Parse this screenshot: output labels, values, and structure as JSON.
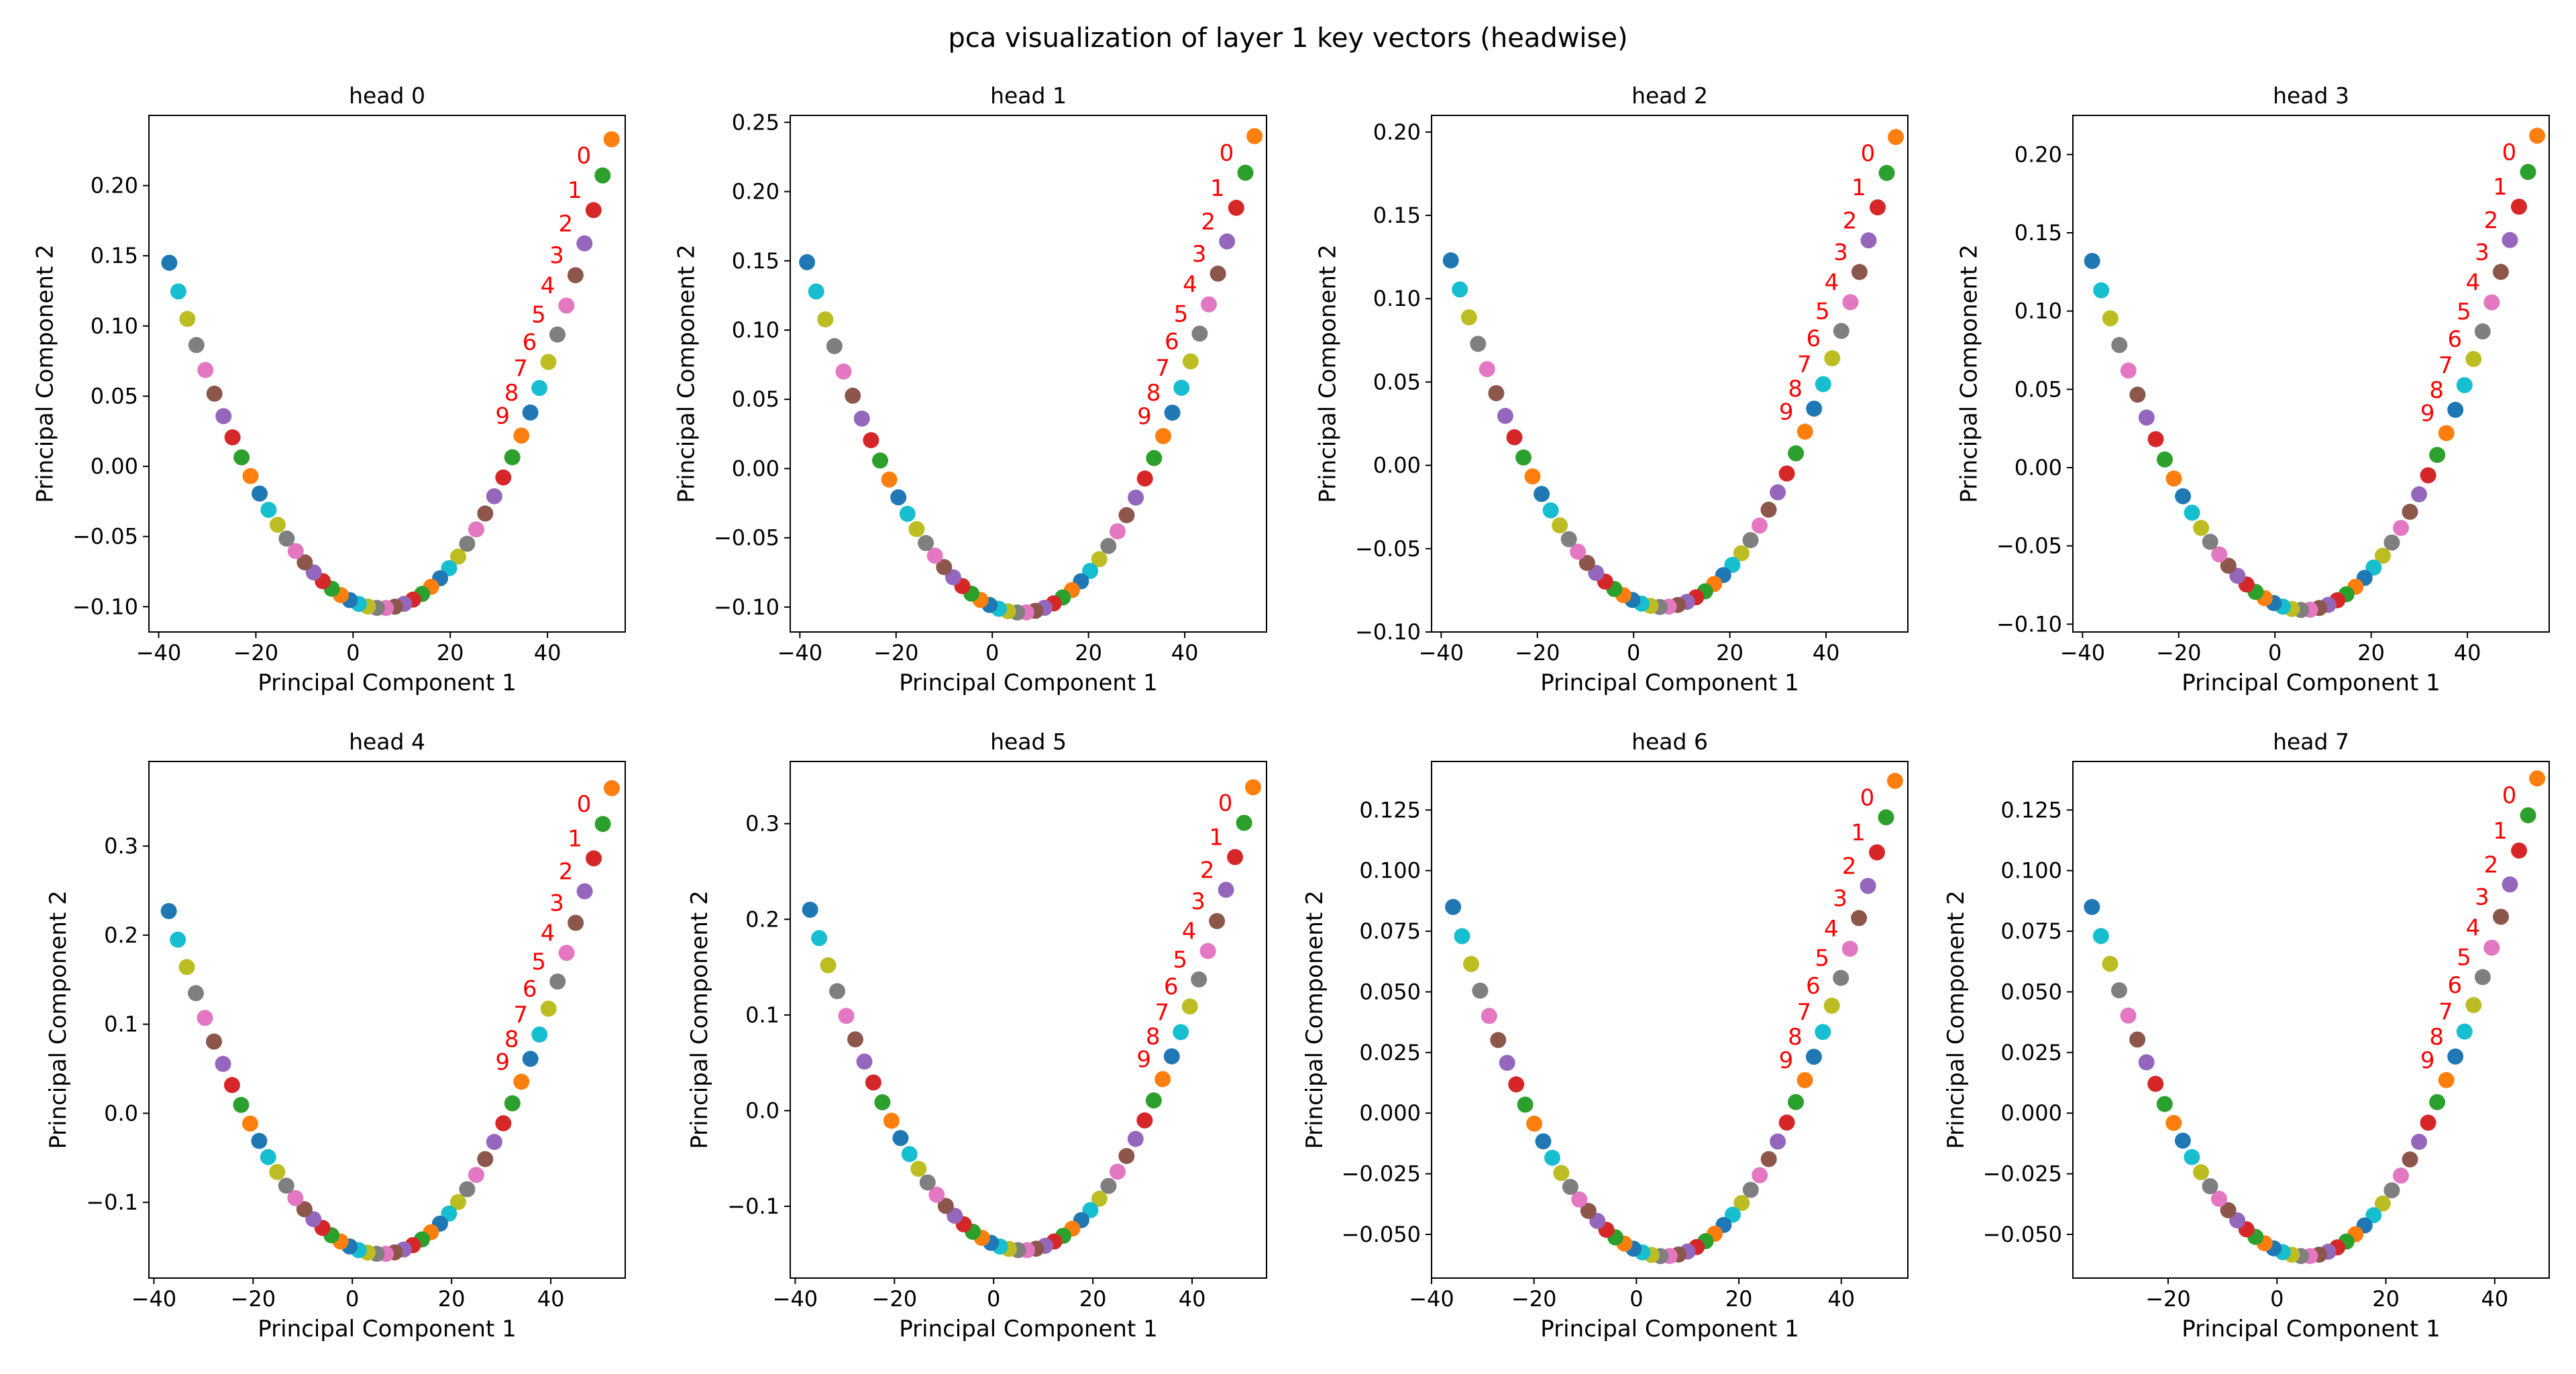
{
  "figure": {
    "title": "pca visualization of layer 1 key vectors (headwise)"
  },
  "palette": [
    "#1f77b4",
    "#ff7f0e",
    "#2ca02c",
    "#d62728",
    "#9467bd",
    "#8c564b",
    "#e377c2",
    "#7f7f7f",
    "#bcbd22",
    "#17becf"
  ],
  "annotation_color": "#ff0000",
  "chart_data": [
    {
      "type": "scatter",
      "title": "head 0",
      "xlabel": "Principal Component 1",
      "ylabel": "Principal Component 2",
      "xlim": [
        -42,
        56
      ],
      "ylim": [
        -0.118,
        0.25
      ],
      "xticks": [
        -40,
        -20,
        0,
        20,
        40
      ],
      "yticks": [
        -0.1,
        -0.05,
        0.0,
        0.05,
        0.1,
        0.15,
        0.2
      ],
      "ytick_labels": [
        "−0.10",
        "−0.05",
        "0.00",
        "0.05",
        "0.10",
        "0.15",
        "0.20"
      ],
      "first_color_index": 1,
      "curve": {
        "x_start": 53.2,
        "x_end": -37.8,
        "y_first": 0.233,
        "y_last": 0.145,
        "y_min": -0.101,
        "x_min": 6.0,
        "count": 50
      },
      "annotations": [
        "0",
        "1",
        "2",
        "3",
        "4",
        "5",
        "6",
        "7",
        "8",
        "9"
      ]
    },
    {
      "type": "scatter",
      "title": "head 1",
      "xlabel": "Principal Component 1",
      "ylabel": "Principal Component 2",
      "xlim": [
        -42,
        57
      ],
      "ylim": [
        -0.118,
        0.255
      ],
      "xticks": [
        -40,
        -20,
        0,
        20,
        40
      ],
      "yticks": [
        -0.1,
        -0.05,
        0.0,
        0.05,
        0.1,
        0.15,
        0.2,
        0.25
      ],
      "ytick_labels": [
        "−0.10",
        "−0.05",
        "0.00",
        "0.05",
        "0.10",
        "0.15",
        "0.20",
        "0.25"
      ],
      "first_color_index": 1,
      "curve": {
        "x_start": 54.5,
        "x_end": -38.5,
        "y_first": 0.24,
        "y_last": 0.149,
        "y_min": -0.104,
        "x_min": 6.0,
        "count": 50
      },
      "annotations": [
        "0",
        "1",
        "2",
        "3",
        "4",
        "5",
        "6",
        "7",
        "8",
        "9"
      ]
    },
    {
      "type": "scatter",
      "title": "head 2",
      "xlabel": "Principal Component 1",
      "ylabel": "Principal Component 2",
      "xlim": [
        -42,
        57
      ],
      "ylim": [
        -0.1,
        0.21
      ],
      "xticks": [
        -40,
        -20,
        0,
        20,
        40
      ],
      "yticks": [
        -0.1,
        -0.05,
        0.0,
        0.05,
        0.1,
        0.15,
        0.2
      ],
      "ytick_labels": [
        "−0.10",
        "−0.05",
        "0.00",
        "0.05",
        "0.10",
        "0.15",
        "0.20"
      ],
      "first_color_index": 1,
      "curve": {
        "x_start": 54.5,
        "x_end": -38.0,
        "y_first": 0.197,
        "y_last": 0.123,
        "y_min": -0.085,
        "x_min": 6.0,
        "count": 50
      },
      "annotations": [
        "0",
        "1",
        "2",
        "3",
        "4",
        "5",
        "6",
        "7",
        "8",
        "9"
      ]
    },
    {
      "type": "scatter",
      "title": "head 3",
      "xlabel": "Principal Component 1",
      "ylabel": "Principal Component 2",
      "xlim": [
        -42,
        57
      ],
      "ylim": [
        -0.105,
        0.225
      ],
      "xticks": [
        -40,
        -20,
        0,
        20,
        40
      ],
      "yticks": [
        -0.1,
        -0.05,
        0.0,
        0.05,
        0.1,
        0.15,
        0.2
      ],
      "ytick_labels": [
        "−0.10",
        "−0.05",
        "0.00",
        "0.05",
        "0.10",
        "0.15",
        "0.20"
      ],
      "first_color_index": 1,
      "curve": {
        "x_start": 54.5,
        "x_end": -38.0,
        "y_first": 0.212,
        "y_last": 0.132,
        "y_min": -0.091,
        "x_min": 6.0,
        "count": 50
      },
      "annotations": [
        "0",
        "1",
        "2",
        "3",
        "4",
        "5",
        "6",
        "7",
        "8",
        "9"
      ]
    },
    {
      "type": "scatter",
      "title": "head 4",
      "xlabel": "Principal Component 1",
      "ylabel": "Principal Component 2",
      "xlim": [
        -41,
        55
      ],
      "ylim": [
        -0.185,
        0.395
      ],
      "xticks": [
        -40,
        -20,
        0,
        20,
        40
      ],
      "yticks": [
        -0.1,
        0.0,
        0.1,
        0.2,
        0.3
      ],
      "ytick_labels": [
        "−0.1",
        "0.0",
        "0.1",
        "0.2",
        "0.3"
      ],
      "first_color_index": 1,
      "curve": {
        "x_start": 52.3,
        "x_end": -37.0,
        "y_first": 0.365,
        "y_last": 0.227,
        "y_min": -0.158,
        "x_min": 5.8,
        "count": 50
      },
      "annotations": [
        "0",
        "1",
        "2",
        "3",
        "4",
        "5",
        "6",
        "7",
        "8",
        "9"
      ]
    },
    {
      "type": "scatter",
      "title": "head 5",
      "xlabel": "Principal Component 1",
      "ylabel": "Principal Component 2",
      "xlim": [
        -41,
        55
      ],
      "ylim": [
        -0.175,
        0.365
      ],
      "xticks": [
        -40,
        -20,
        0,
        20,
        40
      ],
      "yticks": [
        -0.1,
        0.0,
        0.1,
        0.2,
        0.3
      ],
      "ytick_labels": [
        "−0.1",
        "0.0",
        "0.1",
        "0.2",
        "0.3"
      ],
      "first_color_index": 1,
      "curve": {
        "x_start": 52.3,
        "x_end": -37.0,
        "y_first": 0.338,
        "y_last": 0.21,
        "y_min": -0.146,
        "x_min": 5.8,
        "count": 50
      },
      "annotations": [
        "0",
        "1",
        "2",
        "3",
        "4",
        "5",
        "6",
        "7",
        "8",
        "9"
      ]
    },
    {
      "type": "scatter",
      "title": "head 6",
      "xlabel": "Principal Component 1",
      "ylabel": "Principal Component 2",
      "xlim": [
        -40,
        53
      ],
      "ylim": [
        -0.068,
        0.145
      ],
      "xticks": [
        -40,
        -20,
        0,
        20,
        40
      ],
      "yticks": [
        -0.05,
        -0.025,
        0.0,
        0.025,
        0.05,
        0.075,
        0.1,
        0.125
      ],
      "ytick_labels": [
        "−0.050",
        "−0.025",
        "0.000",
        "0.025",
        "0.050",
        "0.075",
        "0.100",
        "0.125"
      ],
      "first_color_index": 1,
      "curve": {
        "x_start": 50.5,
        "x_end": -35.8,
        "y_first": 0.137,
        "y_last": 0.085,
        "y_min": -0.059,
        "x_min": 5.5,
        "count": 50
      },
      "annotations": [
        "0",
        "1",
        "2",
        "3",
        "4",
        "5",
        "6",
        "7",
        "8",
        "9"
      ]
    },
    {
      "type": "scatter",
      "title": "head 7",
      "xlabel": "Principal Component 1",
      "ylabel": "Principal Component 2",
      "xlim": [
        -37.5,
        50
      ],
      "ylim": [
        -0.068,
        0.145
      ],
      "xticks": [
        -20,
        0,
        20,
        40
      ],
      "yticks": [
        -0.05,
        -0.025,
        0.0,
        0.025,
        0.05,
        0.075,
        0.1,
        0.125
      ],
      "ytick_labels": [
        "−0.050",
        "−0.025",
        "0.000",
        "0.025",
        "0.050",
        "0.075",
        "0.100",
        "0.125"
      ],
      "first_color_index": 1,
      "curve": {
        "x_start": 47.8,
        "x_end": -34.0,
        "y_first": 0.138,
        "y_last": 0.085,
        "y_min": -0.059,
        "x_min": 5.3,
        "count": 50
      },
      "annotations": [
        "0",
        "1",
        "2",
        "3",
        "4",
        "5",
        "6",
        "7",
        "8",
        "9"
      ]
    }
  ]
}
